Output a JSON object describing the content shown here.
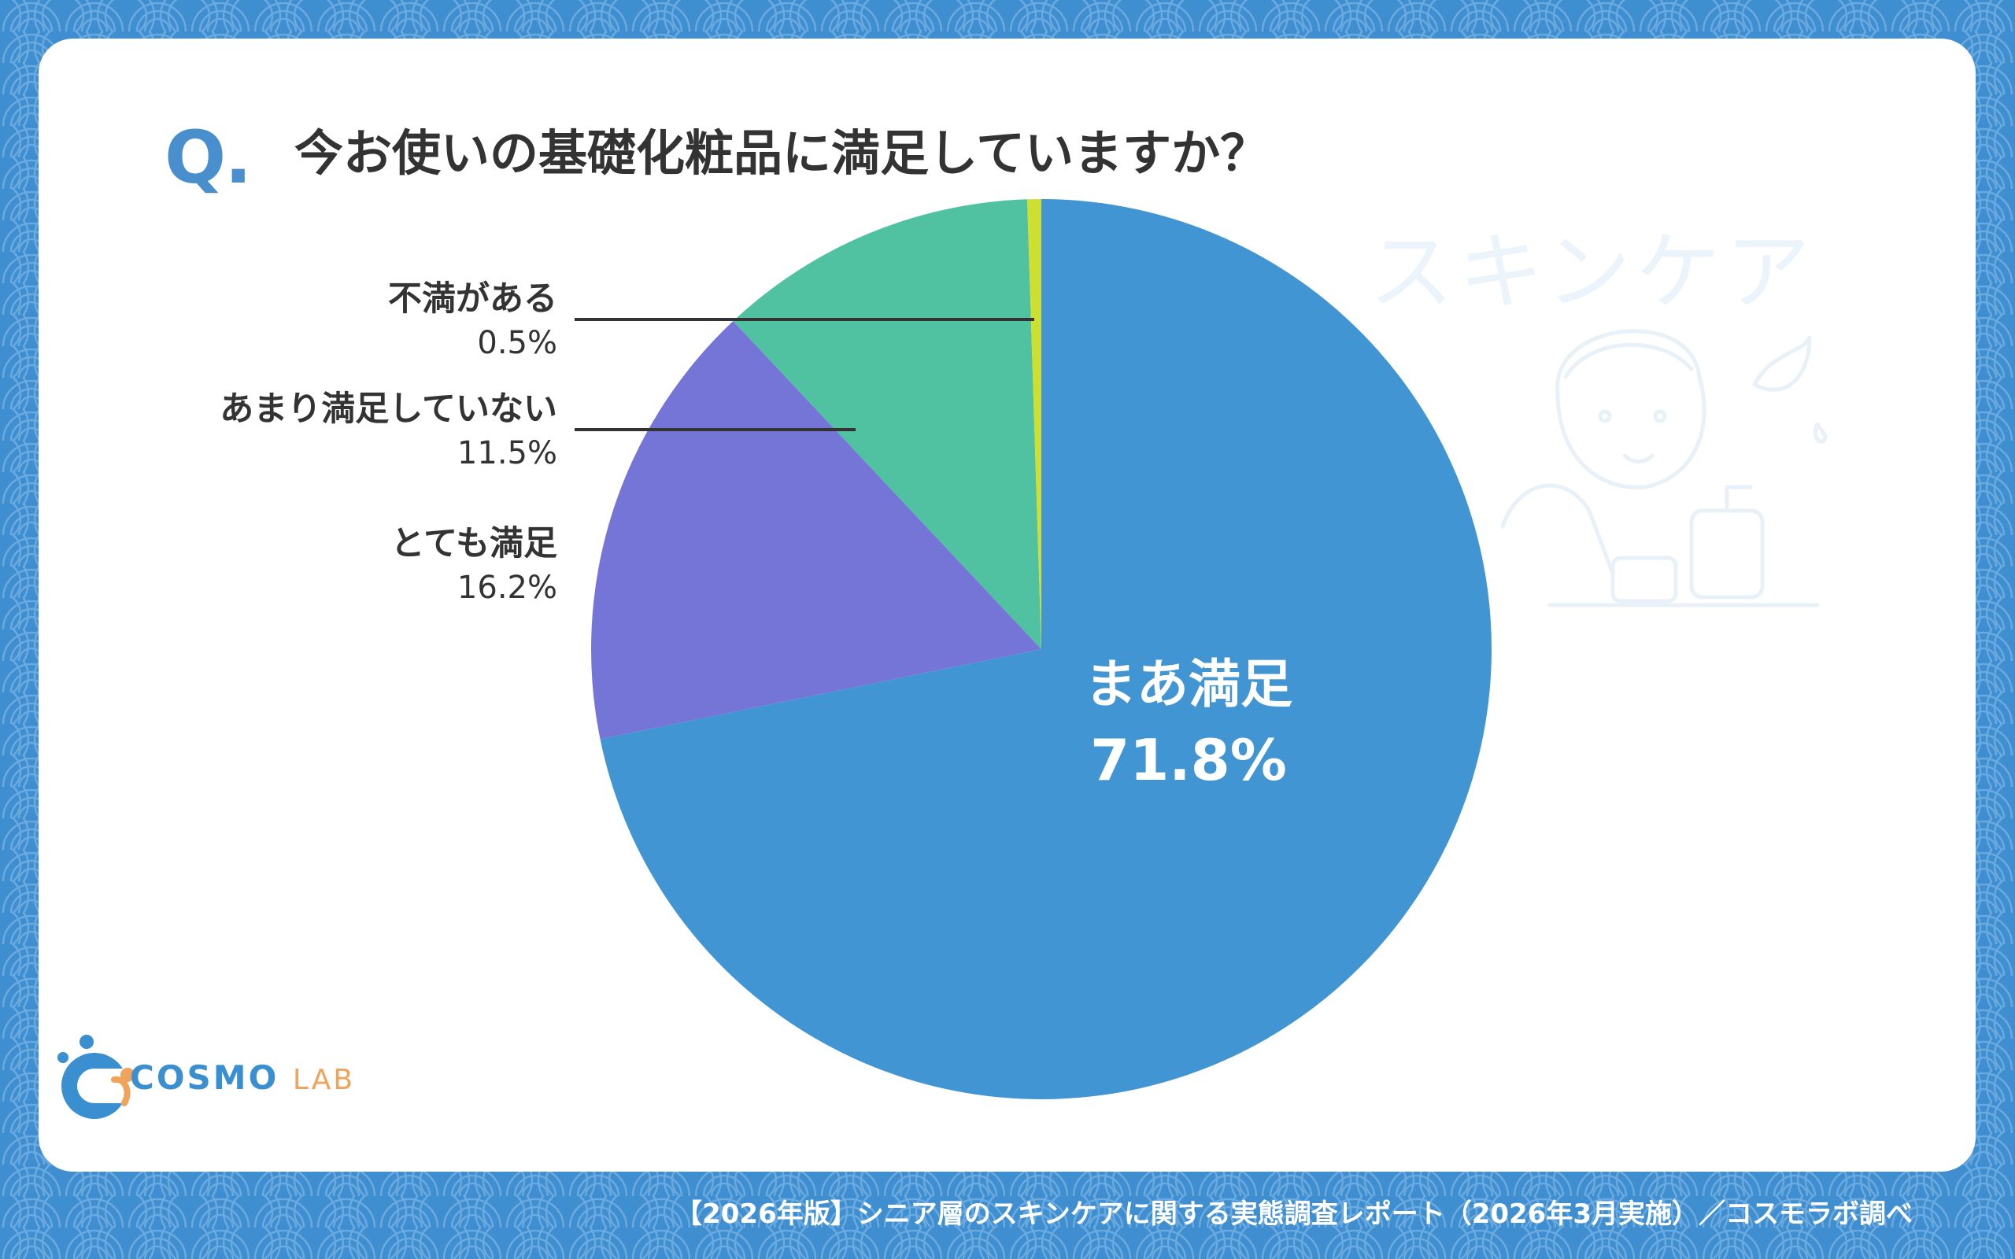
{
  "question_mark": "Q.",
  "title": "今お使いの基礎化粧品に満足していますか？",
  "watermark": "スキンケア",
  "footer": "【2026年版】シニア層のスキンケアに関する実態調査レポート（2026年3月実施）／コスモラボ調べ",
  "logo": {
    "name": "COSMO",
    "suffix": "LAB"
  },
  "colors": {
    "background": "#3f8fd0",
    "card": "#ffffff",
    "text": "#333333",
    "accent": "#4a8fcd"
  },
  "chart_data": {
    "type": "pie",
    "title": "今お使いの基礎化粧品に満足していますか？",
    "slices": [
      {
        "label": "まあ満足",
        "value": 71.8,
        "value_label": "71.8%",
        "color": "#4295d3"
      },
      {
        "label": "とても満足",
        "value": 16.2,
        "value_label": "16.2%",
        "color": "#7475d6"
      },
      {
        "label": "あまり満足していない",
        "value": 11.5,
        "value_label": "11.5%",
        "color": "#50c1a1"
      },
      {
        "label": "不満がある",
        "value": 0.5,
        "value_label": "0.5%",
        "color": "#cde031"
      }
    ],
    "start_angle": "12 o'clock",
    "direction": "clockwise"
  }
}
